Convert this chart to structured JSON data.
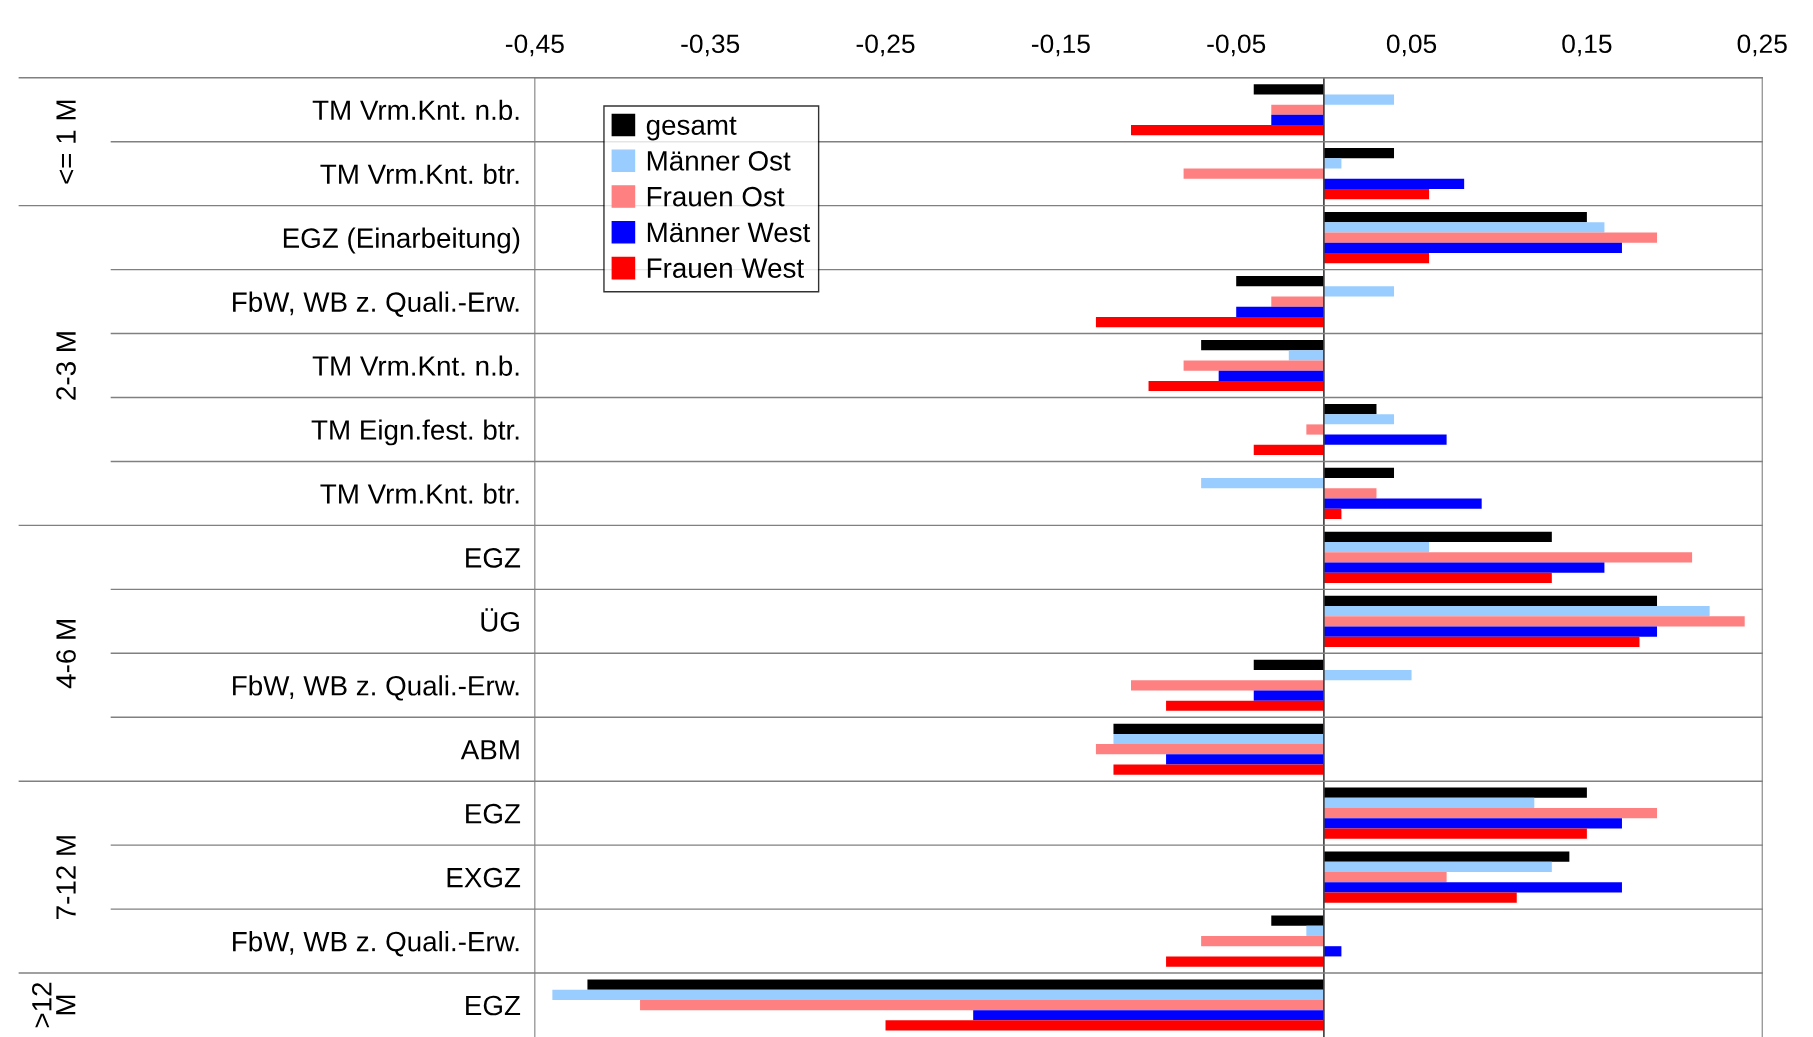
{
  "chart_data": {
    "type": "bar",
    "orientation": "horizontal",
    "categories": [
      "TM Vrm.Knt. n.b.",
      "TM Vrm.Knt. btr.",
      "EGZ (Einarbeitung)",
      "FbW, WB z. Quali.-Erw.",
      "TM Vrm.Knt. n.b.",
      "TM Eign.fest. btr.",
      "TM Vrm.Knt. btr.",
      "EGZ",
      "ÜG",
      "FbW, WB z. Quali.-Erw.",
      "ABM",
      "EGZ",
      "EXGZ",
      "FbW, WB z. Quali.-Erw.",
      "EGZ"
    ],
    "series": [
      {
        "name": "gesamt",
        "color": "#000000",
        "values": [
          -0.04,
          0.04,
          0.15,
          -0.05,
          -0.07,
          0.03,
          0.04,
          0.13,
          0.19,
          -0.04,
          -0.12,
          0.15,
          0.14,
          -0.03,
          -0.42
        ]
      },
      {
        "name": "Männer Ost",
        "color": "#99ccff",
        "values": [
          0.04,
          0.01,
          0.16,
          0.04,
          -0.02,
          0.04,
          -0.07,
          0.06,
          0.22,
          0.05,
          -0.12,
          0.12,
          0.13,
          -0.01,
          -0.44
        ]
      },
      {
        "name": "Frauen Ost",
        "color": "#ff8080",
        "values": [
          -0.03,
          -0.08,
          0.19,
          -0.03,
          -0.08,
          -0.01,
          0.03,
          0.21,
          0.24,
          -0.11,
          -0.13,
          0.19,
          0.07,
          -0.07,
          -0.39
        ]
      },
      {
        "name": "Männer West",
        "color": "#0000ff",
        "values": [
          -0.03,
          0.08,
          0.17,
          -0.05,
          -0.06,
          0.07,
          0.09,
          0.16,
          0.19,
          -0.04,
          -0.09,
          0.17,
          0.17,
          0.01,
          -0.2
        ]
      },
      {
        "name": "Frauen West",
        "color": "#ff0000",
        "values": [
          -0.11,
          0.06,
          0.06,
          -0.13,
          -0.1,
          -0.04,
          0.01,
          0.13,
          0.18,
          -0.09,
          -0.12,
          0.15,
          0.11,
          -0.09,
          -0.25
        ]
      }
    ],
    "xlim": [
      -0.45,
      0.25
    ],
    "xticks": [
      {
        "value": -0.45,
        "label": "-0,45"
      },
      {
        "value": -0.35,
        "label": "-0,35"
      },
      {
        "value": -0.25,
        "label": "-0,25"
      },
      {
        "value": -0.15,
        "label": "-0,15"
      },
      {
        "value": -0.05,
        "label": "-0,05"
      },
      {
        "value": 0.05,
        "label": "0,05"
      },
      {
        "value": 0.15,
        "label": "0,15"
      },
      {
        "value": 0.25,
        "label": "0,25"
      }
    ],
    "annotations": [
      "<= 1 M",
      "2-3 M",
      "4-6 M",
      "7-12 M",
      ">12 M"
    ],
    "legend": "top left",
    "grid": false
  }
}
